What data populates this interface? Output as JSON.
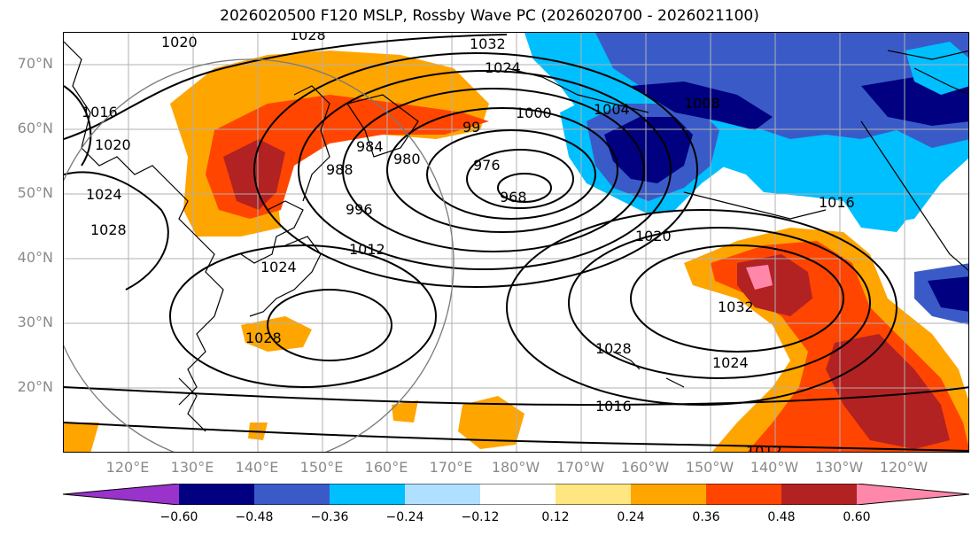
{
  "title": "2026020500 F120 MSLP, Rossby Wave PC (2026020700 - 2026021100)",
  "lat_labels": [
    "70°N",
    "60°N",
    "50°N",
    "40°N",
    "30°N",
    "20°N"
  ],
  "lon_labels": [
    "120°E",
    "130°E",
    "140°E",
    "150°E",
    "160°E",
    "170°E",
    "180°W",
    "170°W",
    "160°W",
    "150°W",
    "140°W",
    "130°W",
    "120°W"
  ],
  "contour_labels": [
    "1020",
    "1028",
    "1032",
    "1024",
    "1000",
    "1004",
    "1008",
    "1016",
    "984",
    "980",
    "976",
    "968",
    "99",
    "988",
    "996",
    "1012",
    "1020",
    "1024",
    "1028",
    "1032",
    "1028",
    "1024",
    "1016",
    "1012",
    "1016",
    "1020",
    "1024",
    "1028"
  ],
  "colorbar": {
    "ticks": [
      "−0.60",
      "−0.48",
      "−0.36",
      "−0.24",
      "−0.12",
      "0.12",
      "0.24",
      "0.36",
      "0.48",
      "0.60"
    ],
    "colors": [
      "#9933cc",
      "#000080",
      "#3a5bc7",
      "#00bfff",
      "#b0e0ff",
      "#ffffff",
      "#ffe680",
      "#ffa500",
      "#ff4500",
      "#b22222",
      "#ff88aa"
    ]
  }
}
